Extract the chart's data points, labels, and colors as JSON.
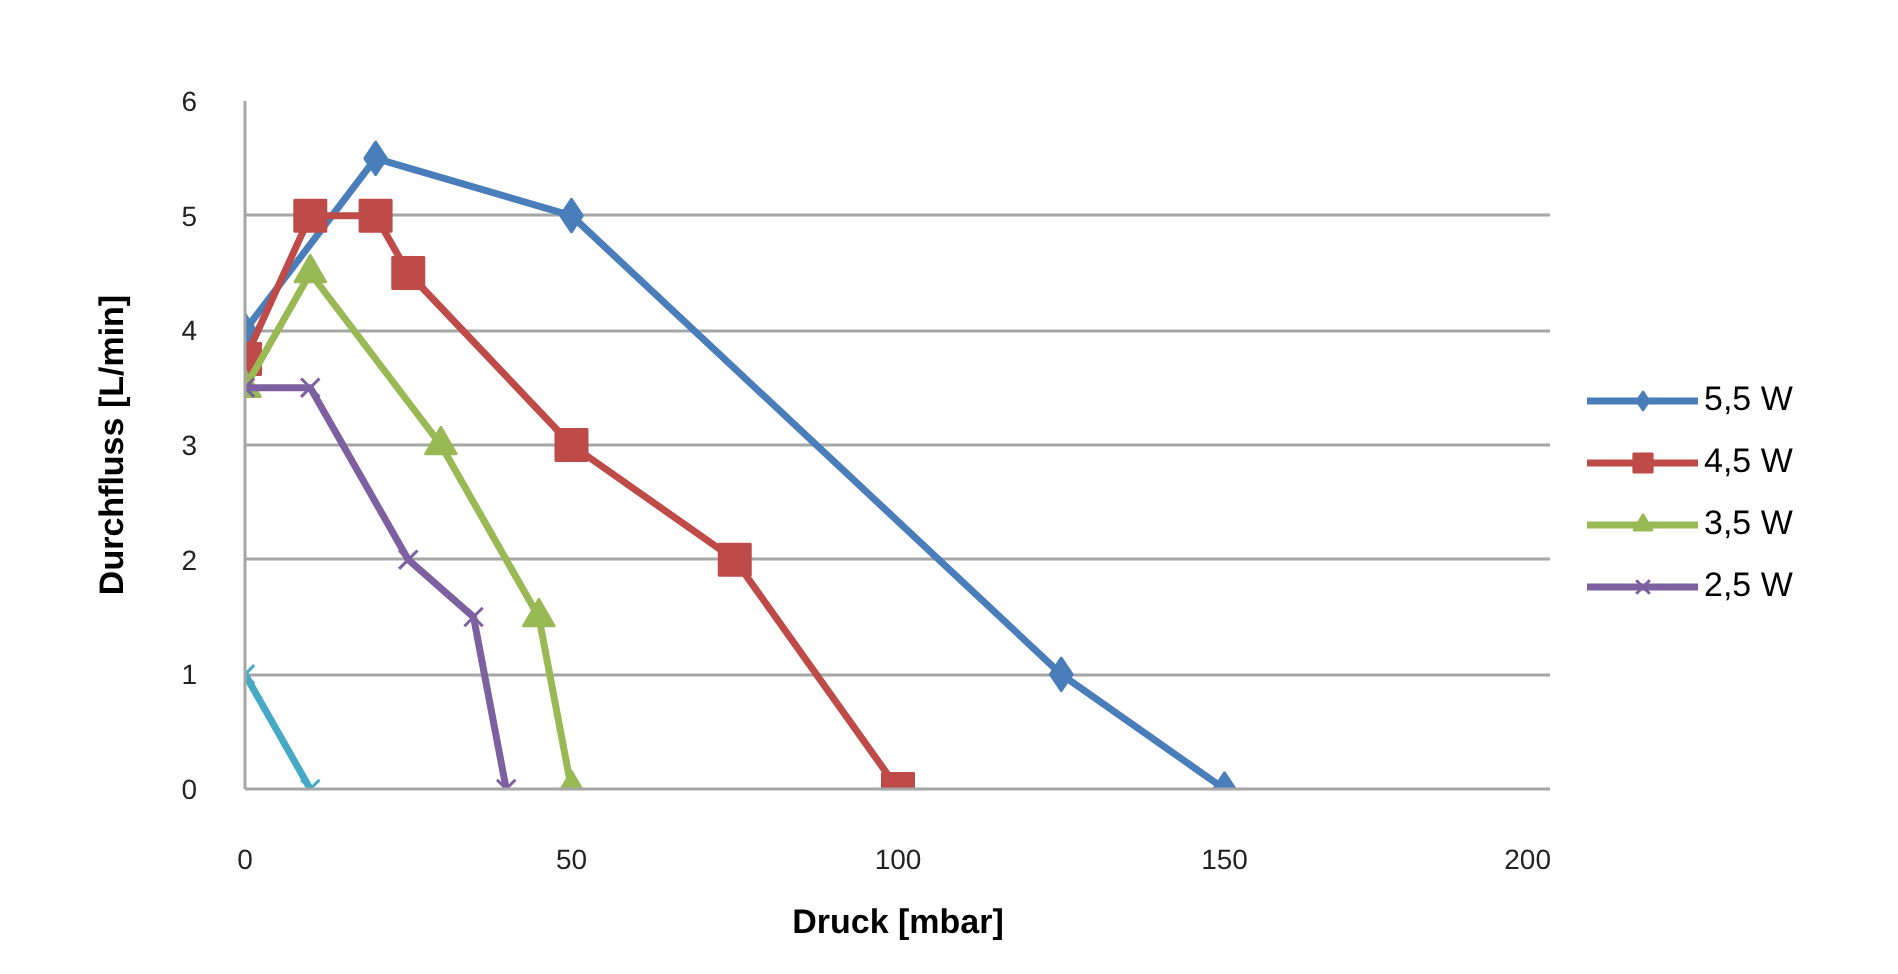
{
  "chart_data": {
    "type": "line",
    "xlabel": "Druck [mbar]",
    "ylabel": "Durchfluss [L/min]",
    "xlim": [
      0,
      200
    ],
    "xticks": [
      0,
      50,
      100,
      150,
      200
    ],
    "ylim": [
      0,
      6
    ],
    "yticks": [
      0,
      1,
      2,
      3,
      4,
      5,
      6
    ],
    "grid": "y",
    "legend": "right",
    "line_style": "solid",
    "series": [
      {
        "name": "5,5 W",
        "color": "#4a7ebb",
        "marker": "diamond",
        "x": [
          0,
          20,
          50,
          125,
          150
        ],
        "values": [
          4,
          5.5,
          5,
          1,
          0
        ]
      },
      {
        "name": "4,5 W",
        "color": "#be4b48",
        "marker": "square",
        "x": [
          0,
          10,
          20,
          25,
          50,
          75,
          100
        ],
        "values": [
          3.75,
          5,
          5,
          4.5,
          3,
          2,
          0
        ]
      },
      {
        "name": "3,5 W",
        "color": "#98b954",
        "marker": "triangle",
        "x": [
          0,
          10,
          30,
          45,
          50
        ],
        "values": [
          3.5,
          4.5,
          3,
          1.5,
          0
        ]
      },
      {
        "name": "2,5 W",
        "color": "#7d60a0",
        "marker": "cross",
        "x": [
          0,
          10,
          25,
          35,
          40
        ],
        "values": [
          3.5,
          3.5,
          2,
          1.5,
          0
        ]
      },
      {
        "color": "#46aac5",
        "marker": "cross",
        "x": [
          0,
          10
        ],
        "values": [
          1,
          0
        ]
      }
    ]
  }
}
